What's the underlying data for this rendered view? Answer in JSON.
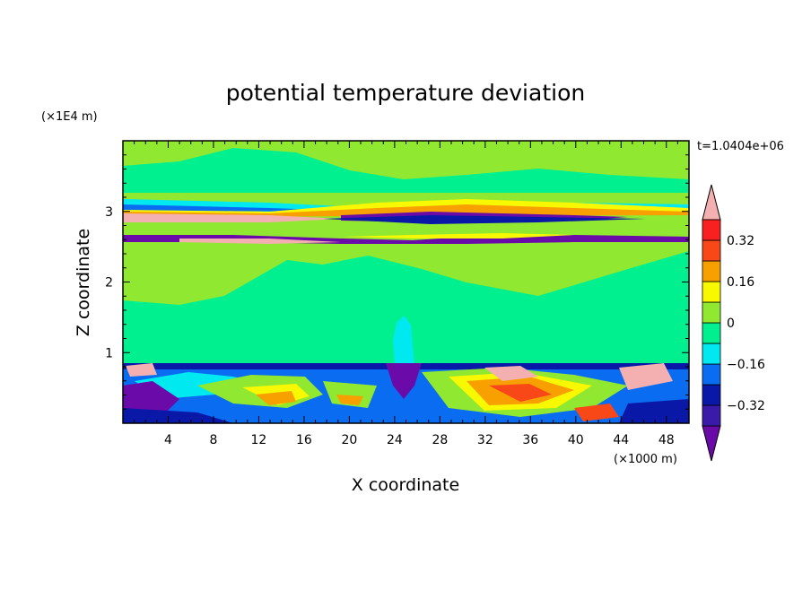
{
  "chart_data": {
    "type": "heatmap",
    "title": "potential temperature deviation",
    "xlabel": "X coordinate",
    "ylabel": "Z coordinate",
    "x_unit": "(×1000 m)",
    "y_unit": "(×1E4 m)",
    "time_label": "t=1.0404e+06",
    "xlim": [
      0,
      50
    ],
    "ylim": [
      0,
      4
    ],
    "x_ticks": [
      4,
      8,
      12,
      16,
      20,
      24,
      28,
      32,
      36,
      40,
      44,
      48
    ],
    "y_ticks": [
      1,
      2,
      3
    ],
    "colorbar": {
      "levels": [
        -0.4,
        -0.32,
        -0.24,
        -0.16,
        -0.08,
        0,
        0.08,
        0.16,
        0.24,
        0.32,
        0.4
      ],
      "tick_labels": [
        "0.32",
        "0.16",
        "0",
        "−0.16",
        "−0.32"
      ],
      "tick_values": [
        0.32,
        0.16,
        0,
        -0.16,
        -0.32
      ],
      "colors": [
        "#6a0aa8",
        "#3a1aa8",
        "#0a18a8",
        "#0a6cf0",
        "#00e8f0",
        "#00f090",
        "#90e830",
        "#f8f800",
        "#f8a000",
        "#f84818",
        "#f82020",
        "#f4b0b0"
      ],
      "extend": "both"
    }
  }
}
